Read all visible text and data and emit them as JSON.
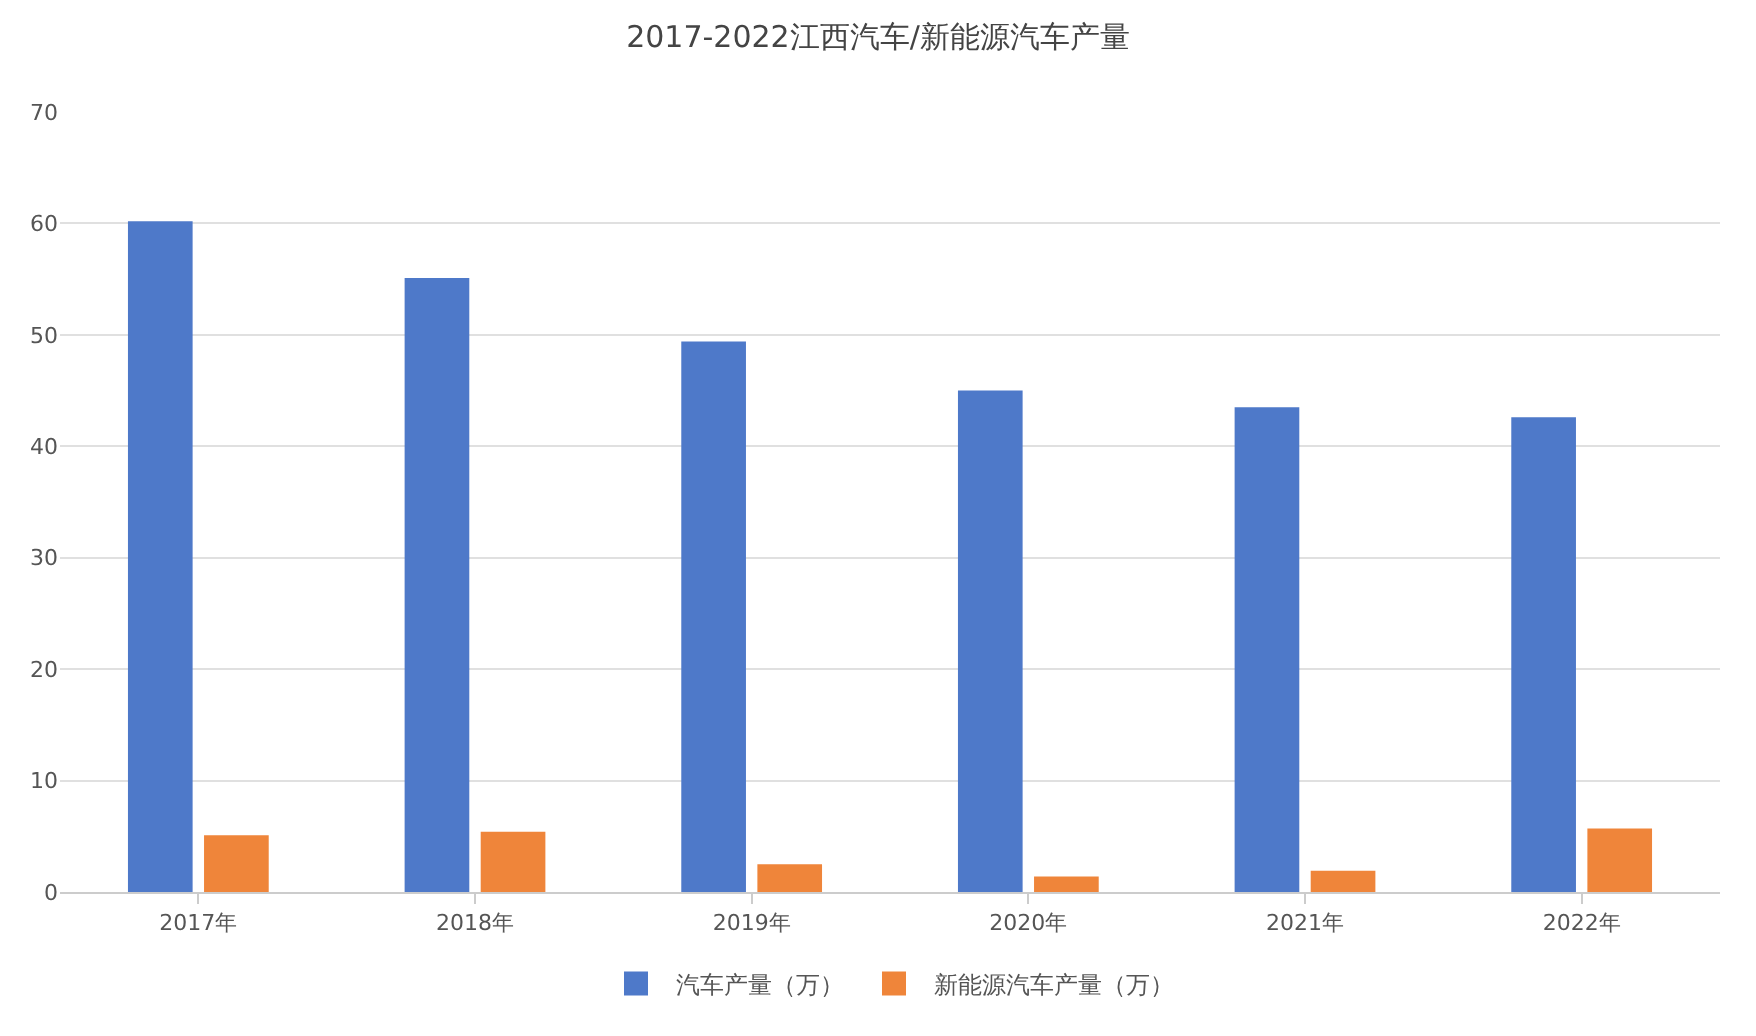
{
  "chart_data": {
    "type": "bar",
    "title": "2017-2022江西汽车/新能源汽车产量",
    "categories": [
      "2017年",
      "2018年",
      "2019年",
      "2020年",
      "2021年",
      "2022年"
    ],
    "series": [
      {
        "name": "汽车产量（万）",
        "color": "#4e79c9",
        "values": [
          60.2,
          55.1,
          49.4,
          45.0,
          43.5,
          42.6
        ]
      },
      {
        "name": "新能源汽车产量（万）",
        "color": "#ef853a",
        "values": [
          5.1,
          5.4,
          2.5,
          1.4,
          1.9,
          5.7
        ]
      }
    ],
    "ylim": [
      0,
      70
    ],
    "yticks": [
      0,
      10,
      20,
      30,
      40,
      50,
      60,
      70
    ],
    "grid": "y",
    "legend": "bottom"
  }
}
